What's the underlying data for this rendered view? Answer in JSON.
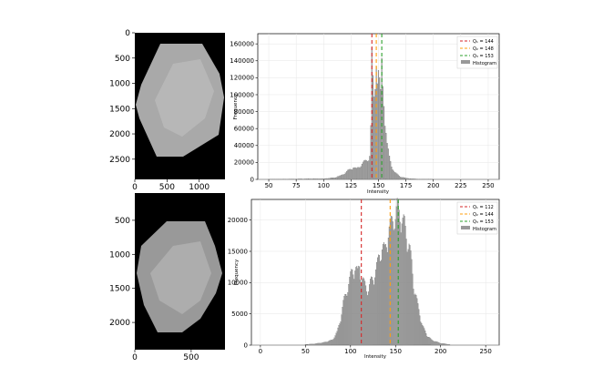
{
  "chart_data": [
    {
      "type": "image",
      "panel": "top-image",
      "xticks": [
        0,
        500,
        1000
      ],
      "yticks": [
        0,
        500,
        1000,
        1500,
        2000,
        2500
      ],
      "xlim": [
        0,
        1400
      ],
      "ylim": [
        2900,
        0
      ]
    },
    {
      "type": "image",
      "panel": "bottom-image",
      "xticks": [
        0,
        500
      ],
      "yticks": [
        500,
        1000,
        1500,
        2000
      ],
      "xlim": [
        0,
        800
      ],
      "ylim": [
        2400,
        100
      ]
    },
    {
      "type": "bar",
      "panel": "top-histogram",
      "xlabel": "Intensity",
      "ylabel": "Frequency",
      "xlim": [
        40,
        260
      ],
      "ylim": [
        0,
        172000
      ],
      "xticks": [
        50,
        75,
        100,
        125,
        150,
        175,
        200,
        225,
        250
      ],
      "yticks": [
        0,
        20000,
        40000,
        60000,
        80000,
        100000,
        120000,
        140000,
        160000
      ],
      "grid": true,
      "legend": "top-right",
      "quartiles": [
        {
          "label": "Q₁ = 144",
          "value": 144,
          "color": "#d62728"
        },
        {
          "label": "Q₂ = 148",
          "value": 148,
          "color": "#ff9f0e"
        },
        {
          "label": "Q₃ = 153",
          "value": 153,
          "color": "#2ca02c"
        }
      ],
      "histogram_label": "Histogram",
      "x": [
        50,
        80,
        100,
        110,
        115,
        118,
        120,
        122,
        125,
        127,
        130,
        133,
        135,
        137,
        140,
        142,
        143,
        144,
        145,
        146,
        147,
        148,
        149,
        150,
        151,
        152,
        153,
        154,
        155,
        156,
        157,
        158,
        160,
        162,
        165,
        168,
        170,
        175,
        180,
        190,
        200
      ],
      "values": [
        300,
        600,
        800,
        2000,
        4000,
        6000,
        8000,
        10000,
        12000,
        14000,
        12000,
        15000,
        18000,
        20000,
        22000,
        28000,
        60000,
        140000,
        110000,
        90000,
        105000,
        145000,
        120000,
        125000,
        110000,
        95000,
        130000,
        105000,
        90000,
        70000,
        55000,
        40000,
        25000,
        15000,
        8000,
        5000,
        3000,
        1500,
        800,
        300,
        100
      ]
    },
    {
      "type": "bar",
      "panel": "bottom-histogram",
      "xlabel": "Intensity",
      "ylabel": "Frequency",
      "xlim": [
        -10,
        265
      ],
      "ylim": [
        0,
        23300
      ],
      "xticks": [
        0,
        50,
        100,
        150,
        200,
        250
      ],
      "yticks": [
        0,
        5000,
        10000,
        15000,
        20000
      ],
      "grid": true,
      "legend": "top-right",
      "quartiles": [
        {
          "label": "Q₁ = 112",
          "value": 112,
          "color": "#d62728"
        },
        {
          "label": "Q₂ = 144",
          "value": 144,
          "color": "#ff9f0e"
        },
        {
          "label": "Q₃ = 153",
          "value": 153,
          "color": "#2ca02c"
        }
      ],
      "histogram_label": "Histogram",
      "x": [
        50,
        60,
        70,
        80,
        85,
        88,
        90,
        92,
        95,
        98,
        100,
        102,
        105,
        108,
        110,
        112,
        115,
        118,
        120,
        122,
        125,
        128,
        130,
        132,
        135,
        138,
        140,
        142,
        145,
        148,
        150,
        152,
        155,
        158,
        160,
        162,
        165,
        168,
        170,
        175,
        180,
        185,
        190,
        200,
        210
      ],
      "values": [
        100,
        200,
        400,
        800,
        2000,
        3500,
        5000,
        6500,
        8000,
        9500,
        10500,
        11500,
        12000,
        11000,
        12500,
        10500,
        9500,
        9000,
        8500,
        9500,
        10500,
        11500,
        12500,
        14000,
        15000,
        14500,
        16000,
        17500,
        18500,
        20000,
        19500,
        21000,
        20500,
        19000,
        18500,
        17000,
        15500,
        12500,
        9500,
        6000,
        3000,
        1500,
        800,
        300,
        100
      ]
    }
  ]
}
